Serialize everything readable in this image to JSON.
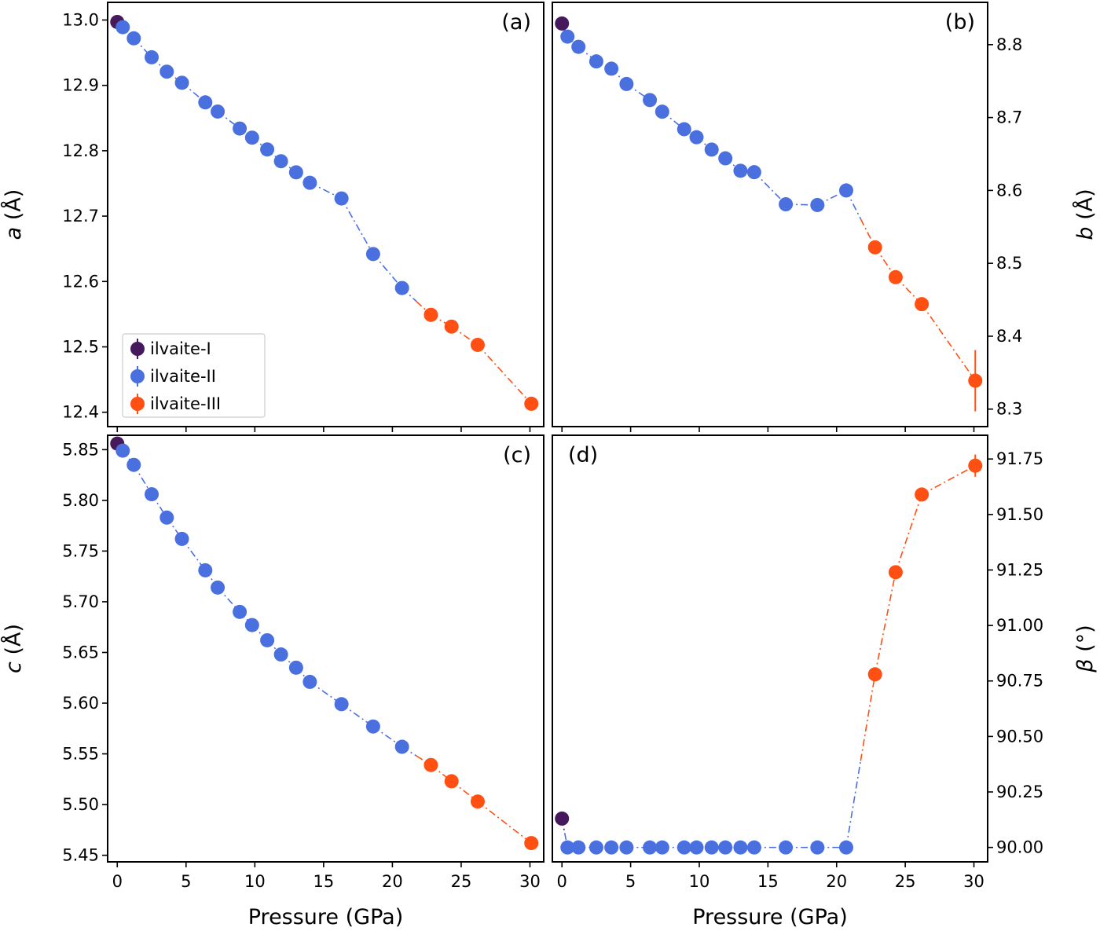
{
  "figure": {
    "xlabel": "Pressure (GPa)",
    "legend": {
      "placement": "lower-left of panel (a)",
      "entries": [
        {
          "label": "ilvaite-I",
          "color": "#45195c"
        },
        {
          "label": "ilvaite-II",
          "color": "#4a70e0"
        },
        {
          "label": "ilvaite-III",
          "color": "#ff4f12"
        }
      ]
    }
  },
  "chart_data": [
    {
      "panel": "(a)",
      "type": "scatter",
      "xlabel": "",
      "ylabel_symbol": "a",
      "ylabel_unit": " (Å)",
      "ylabel": "a (Å)",
      "y_axis_side": "left",
      "xlim": [
        -0.7,
        31.0
      ],
      "ylim": [
        12.378,
        13.027
      ],
      "xticks": [
        0,
        5,
        10,
        15,
        20,
        25,
        30
      ],
      "xtick_labels_shown": false,
      "yticks": [
        12.4,
        12.5,
        12.6,
        12.7,
        12.8,
        12.9,
        13.0
      ],
      "ytick_labels": [
        "12.4",
        "12.5",
        "12.6",
        "12.7",
        "12.8",
        "12.9",
        "13.0"
      ],
      "series": [
        {
          "name": "ilvaite-I",
          "color": "#45195c",
          "x": [
            0.0
          ],
          "y": [
            12.997
          ]
        },
        {
          "name": "ilvaite-II",
          "color": "#4a70e0",
          "x": [
            0.4,
            1.2,
            2.5,
            3.6,
            4.7,
            6.4,
            7.3,
            8.9,
            9.8,
            10.9,
            11.9,
            13.0,
            14.0,
            16.3,
            18.6,
            20.7
          ],
          "y": [
            12.989,
            12.972,
            12.943,
            12.921,
            12.904,
            12.874,
            12.86,
            12.834,
            12.82,
            12.802,
            12.784,
            12.767,
            12.751,
            12.727,
            12.642,
            12.59
          ]
        },
        {
          "name": "ilvaite-III",
          "color": "#ff4f12",
          "x": [
            22.8,
            24.3,
            26.2,
            30.1
          ],
          "y": [
            12.549,
            12.531,
            12.503,
            12.413
          ]
        }
      ]
    },
    {
      "panel": "(b)",
      "type": "scatter",
      "xlabel": "",
      "ylabel_symbol": "b",
      "ylabel_unit": " (Å)",
      "ylabel": "b (Å)",
      "y_axis_side": "right",
      "xlim": [
        -0.7,
        31.0
      ],
      "ylim": [
        8.276,
        8.858
      ],
      "xticks": [
        0,
        5,
        10,
        15,
        20,
        25,
        30
      ],
      "xtick_labels_shown": false,
      "yticks": [
        8.3,
        8.4,
        8.5,
        8.6,
        8.7,
        8.8
      ],
      "ytick_labels": [
        "8.3",
        "8.4",
        "8.5",
        "8.6",
        "8.7",
        "8.8"
      ],
      "series": [
        {
          "name": "ilvaite-I",
          "color": "#45195c",
          "x": [
            0.0
          ],
          "y": [
            8.829
          ]
        },
        {
          "name": "ilvaite-II",
          "color": "#4a70e0",
          "x": [
            0.4,
            1.2,
            2.5,
            3.6,
            4.7,
            6.4,
            7.3,
            8.9,
            9.8,
            10.9,
            11.9,
            13.0,
            14.0,
            16.3,
            18.6,
            20.7
          ],
          "y": [
            8.811,
            8.797,
            8.777,
            8.767,
            8.746,
            8.724,
            8.708,
            8.684,
            8.673,
            8.656,
            8.644,
            8.627,
            8.625,
            8.581,
            8.58,
            8.6
          ]
        },
        {
          "name": "ilvaite-III",
          "color": "#ff4f12",
          "x": [
            22.8,
            24.3,
            26.2,
            30.1
          ],
          "y": [
            8.522,
            8.481,
            8.444,
            8.339
          ],
          "yerr": [
            0,
            0,
            0,
            0.042
          ]
        }
      ]
    },
    {
      "panel": "(c)",
      "type": "scatter",
      "xlabel": "Pressure (GPa)",
      "ylabel_symbol": "c",
      "ylabel_unit": " (Å)",
      "ylabel": "c (Å)",
      "y_axis_side": "left",
      "xlim": [
        -0.7,
        31.0
      ],
      "ylim": [
        5.4435,
        5.8642
      ],
      "xticks": [
        0,
        5,
        10,
        15,
        20,
        25,
        30
      ],
      "xtick_labels": [
        "0",
        "5",
        "10",
        "15",
        "20",
        "25",
        "30"
      ],
      "yticks": [
        5.45,
        5.5,
        5.55,
        5.6,
        5.65,
        5.7,
        5.75,
        5.8,
        5.85
      ],
      "ytick_labels": [
        "5.45",
        "5.50",
        "5.55",
        "5.60",
        "5.65",
        "5.70",
        "5.75",
        "5.80",
        "5.85"
      ],
      "series": [
        {
          "name": "ilvaite-I",
          "color": "#45195c",
          "x": [
            0.0
          ],
          "y": [
            5.856
          ]
        },
        {
          "name": "ilvaite-II",
          "color": "#4a70e0",
          "x": [
            0.4,
            1.2,
            2.5,
            3.6,
            4.7,
            6.4,
            7.3,
            8.9,
            9.8,
            10.9,
            11.9,
            13.0,
            14.0,
            16.3,
            18.6,
            20.7
          ],
          "y": [
            5.849,
            5.835,
            5.806,
            5.783,
            5.762,
            5.731,
            5.714,
            5.69,
            5.677,
            5.662,
            5.648,
            5.635,
            5.621,
            5.599,
            5.577,
            5.557
          ]
        },
        {
          "name": "ilvaite-III",
          "color": "#ff4f12",
          "x": [
            22.8,
            24.3,
            26.2,
            30.1
          ],
          "y": [
            5.539,
            5.523,
            5.503,
            5.462
          ]
        }
      ]
    },
    {
      "panel": "(d)",
      "type": "scatter",
      "xlabel": "Pressure (GPa)",
      "ylabel_symbol": "β",
      "ylabel_unit": " (°)",
      "ylabel": "β (°)",
      "y_axis_side": "right",
      "xlim": [
        -0.7,
        31.0
      ],
      "ylim": [
        89.935,
        91.857
      ],
      "xticks": [
        0,
        5,
        10,
        15,
        20,
        25,
        30
      ],
      "xtick_labels": [
        "0",
        "5",
        "10",
        "15",
        "20",
        "25",
        "30"
      ],
      "yticks": [
        90.0,
        90.25,
        90.5,
        90.75,
        91.0,
        91.25,
        91.5,
        91.75
      ],
      "ytick_labels": [
        "90.00",
        "90.25",
        "90.50",
        "90.75",
        "91.00",
        "91.25",
        "91.50",
        "91.75"
      ],
      "series": [
        {
          "name": "ilvaite-I",
          "color": "#45195c",
          "x": [
            0.0
          ],
          "y": [
            90.13
          ]
        },
        {
          "name": "ilvaite-II",
          "color": "#4a70e0",
          "x": [
            0.4,
            1.2,
            2.5,
            3.6,
            4.7,
            6.4,
            7.3,
            8.9,
            9.8,
            10.9,
            11.9,
            13.0,
            14.0,
            16.3,
            18.6,
            20.7
          ],
          "y": [
            90.0,
            90.0,
            90.0,
            90.0,
            90.0,
            90.0,
            90.0,
            90.0,
            90.0,
            90.0,
            90.0,
            90.0,
            90.0,
            90.0,
            90.0,
            90.0
          ]
        },
        {
          "name": "ilvaite-III",
          "color": "#ff4f12",
          "x": [
            22.8,
            24.3,
            26.2,
            30.1
          ],
          "y": [
            90.78,
            91.24,
            91.59,
            91.72
          ],
          "yerr": [
            0,
            0,
            0,
            0.05
          ]
        }
      ]
    }
  ]
}
